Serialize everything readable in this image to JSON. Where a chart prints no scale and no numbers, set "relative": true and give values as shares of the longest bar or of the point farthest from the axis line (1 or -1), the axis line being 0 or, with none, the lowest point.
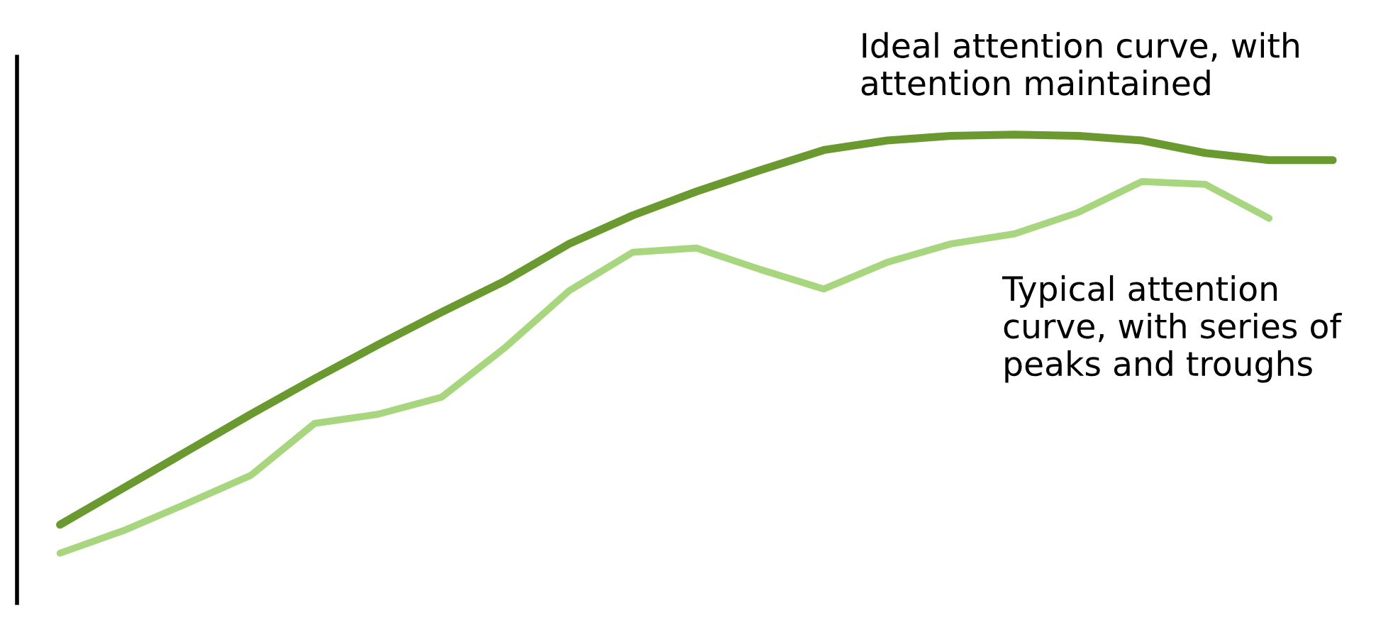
{
  "chart_data": {
    "type": "line",
    "relative": true,
    "legend": false,
    "marker": "none",
    "line_style": "solid",
    "categories": [
      null,
      null,
      null,
      null,
      null,
      null,
      null,
      null,
      null,
      null,
      null,
      null,
      null,
      null,
      null,
      null,
      null,
      null,
      null,
      null,
      null
    ],
    "series": [
      {
        "name": "Ideal attention curve, with attention maintained",
        "color": "#6a9a2f",
        "values": [
          0.068,
          0.156,
          0.244,
          0.332,
          0.417,
          0.498,
          0.576,
          0.651,
          0.739,
          0.807,
          0.864,
          0.915,
          0.963,
          0.986,
          0.997,
          1.0,
          0.997,
          0.986,
          0.956,
          0.939,
          0.939
        ]
      },
      {
        "name": "Typical attention curve, with series of peaks and troughs",
        "color": "#a8d67e",
        "values": [
          0,
          0.054,
          0.119,
          0.186,
          0.31,
          0.332,
          0.373,
          0.492,
          0.627,
          0.719,
          0.729,
          0.678,
          0.631,
          0.695,
          0.739,
          0.763,
          0.814,
          0.888,
          0.881,
          0.8,
          null
        ]
      }
    ]
  }
}
